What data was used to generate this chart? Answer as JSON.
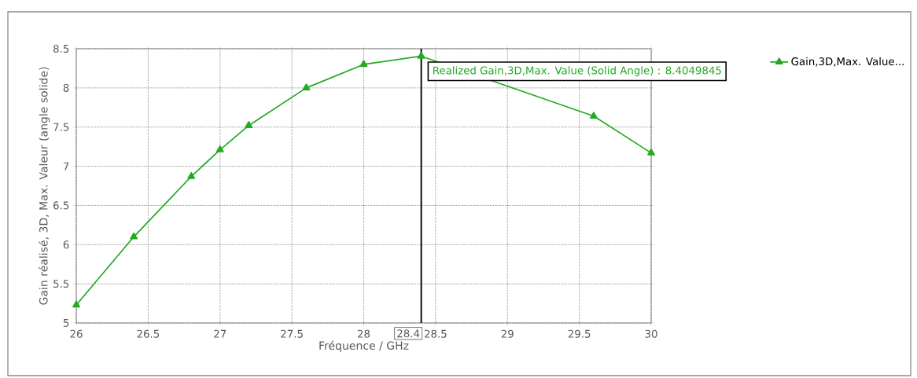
{
  "chart_data": {
    "type": "line",
    "xlabel": "Fréquence / GHz",
    "ylabel": "Gain réalisé, 3D, Max. Valeur (angle solide)",
    "x": [
      26,
      26.4,
      26.8,
      27,
      27.2,
      27.6,
      28,
      28.4,
      29.6,
      30
    ],
    "series": [
      {
        "name": "Gain,3D,Max. Value...",
        "color": "#22aa22",
        "values": [
          5.23,
          6.1,
          6.87,
          7.21,
          7.52,
          8.0,
          8.3,
          8.4049845,
          7.64,
          7.17
        ]
      }
    ],
    "xlim": [
      26,
      30
    ],
    "ylim": [
      5,
      8.5
    ],
    "xticks": [
      26,
      26.5,
      27,
      27.5,
      28,
      28.5,
      29,
      29.5,
      30
    ],
    "yticks": [
      5,
      5.5,
      6,
      6.5,
      7,
      7.5,
      8,
      8.5
    ],
    "ref_lines": [
      {
        "axis": "x",
        "value": 28.4,
        "label": "28.4",
        "color": "#000000"
      }
    ],
    "annotations": [
      {
        "text": "Realized Gain,3D,Max. Value (Solid Angle) : 8.4049845",
        "x": 28.4,
        "y": 8.4049845
      }
    ],
    "grid": true,
    "legend": "right",
    "marker": "triangle",
    "line_style": "solid"
  }
}
